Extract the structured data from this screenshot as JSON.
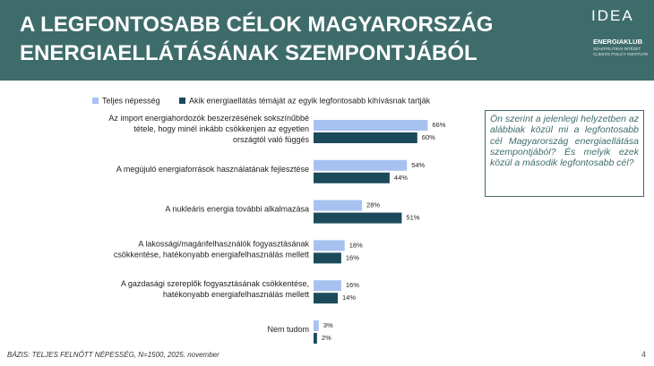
{
  "header": {
    "title": "A LEGFONTOSABB CÉLOK MAGYARORSZÁG\nENERGIAELLÁTÁSÁNAK SZEMPONTJÁBÓL"
  },
  "logos": {
    "idea": "IDEA",
    "energiaklub": "ENERGIAKLUB",
    "energiaklub_sub1": "SZAKPOLITIKAI INTÉZET",
    "energiaklub_sub2": "CLIMATE POLICY INSTITUTE"
  },
  "chart_data": {
    "type": "bar",
    "orientation": "horizontal",
    "categories": [
      "Az import energiahordozók beszerzésének sokszínűbbé\ntétele, hogy minél inkább csökkenjen az egyetlen\nországtól való függés",
      "A megújuló energiaforrások használatának fejlesztése",
      "A nukleáris energia további alkalmazása",
      "A lakossági/magánfelhasználók fogyasztásának\ncsökkentése, hatékonyabb energiafelhasználás mellett",
      "A gazdasági szereplők fogyasztásának csökkentése,\nhatékonyabb energiafelhasználás mellett",
      "Nem tudom"
    ],
    "series": [
      {
        "name": "Teljes népesség",
        "color": "#a7c2f0",
        "values": [
          66,
          54,
          28,
          18,
          16,
          3
        ],
        "value_labels": [
          "66%",
          "54%",
          "28%",
          "18%",
          "16%",
          "3%"
        ]
      },
      {
        "name": "Akik energiaellátás témáját az egyik legfontosabb kihívásnak tartják",
        "color": "#1c4a5c",
        "values": [
          60,
          44,
          51,
          16,
          14,
          2
        ],
        "value_labels": [
          "60%",
          "44%",
          "51%",
          "16%",
          "14%",
          "2%"
        ]
      }
    ]
  },
  "question": "Ön szerint a jelenlegi helyzetben az alábbiak közül mi a legfontosabb cél Magyarország energiaellátása szempontjából? És melyik ezek közül a második legfontosabb cél?",
  "footer": {
    "source": "BÁZIS: TELJES FELNŐTT NÉPESSÉG, N=1500, 2025. november",
    "page": "4"
  }
}
